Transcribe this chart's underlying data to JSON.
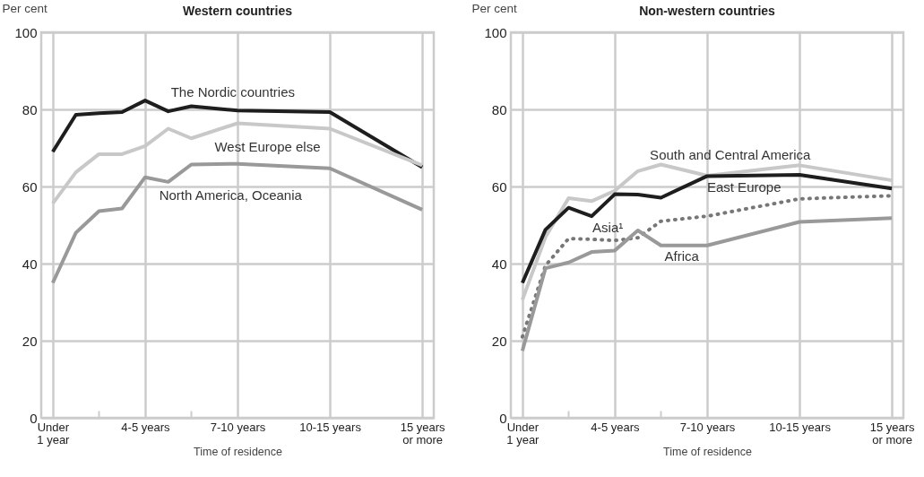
{
  "chart_data": [
    {
      "type": "line",
      "title": "Western countries",
      "ylabel": "Per cent",
      "xlabel": "Time of residence",
      "categories": [
        "Under\n1 year",
        null,
        null,
        null,
        "4-5 years",
        null,
        null,
        null,
        "7-10 years",
        null,
        null,
        null,
        "10-15 years",
        null,
        null,
        null,
        "15 years\nor more"
      ],
      "ylim": [
        0,
        100
      ],
      "yticks": [
        0,
        20,
        40,
        60,
        80,
        100
      ],
      "grid": true,
      "series": [
        {
          "name": "The Nordic countries",
          "color": "#1e1e1e",
          "values": [
            69,
            78.6,
            79,
            79.3,
            82.3,
            79.5,
            80.8,
            null,
            79.7,
            null,
            null,
            null,
            79.3,
            null,
            null,
            null,
            65
          ]
        },
        {
          "name": "West Europe else",
          "color": "#c8c8c8",
          "values": [
            55.6,
            63.7,
            68.4,
            68.4,
            70.5,
            75,
            72.5,
            null,
            76.4,
            null,
            null,
            null,
            75,
            null,
            null,
            null,
            65.5
          ]
        },
        {
          "name": "North America, Oceania",
          "color": "#999999",
          "values": [
            35,
            48,
            53.6,
            54.3,
            62.4,
            61.2,
            65.7,
            null,
            65.9,
            null,
            null,
            null,
            64.7,
            null,
            null,
            null,
            54
          ]
        }
      ]
    },
    {
      "type": "line",
      "title": "Non-western countries",
      "ylabel": "Per cent",
      "xlabel": "Time of residence",
      "categories": [
        "Under\n1 year",
        null,
        null,
        null,
        "4-5 years",
        null,
        null,
        null,
        "7-10 years",
        null,
        null,
        null,
        "10-15 years",
        null,
        null,
        null,
        "15 years\nor more"
      ],
      "ylim": [
        0,
        100
      ],
      "yticks": [
        0,
        20,
        40,
        60,
        80,
        100
      ],
      "grid": true,
      "series": [
        {
          "name": "South and Central America",
          "color": "#c8c8c8",
          "values": [
            30.6,
            46.9,
            57,
            56.2,
            58.9,
            64,
            65.7,
            null,
            62.8,
            null,
            null,
            null,
            65.5,
            null,
            null,
            null,
            61.6
          ]
        },
        {
          "name": "East Europe",
          "color": "#1e1e1e",
          "values": [
            35,
            48.8,
            54.5,
            52.3,
            58,
            57.9,
            57.1,
            null,
            62.7,
            null,
            null,
            null,
            63,
            null,
            null,
            null,
            59.5
          ]
        },
        {
          "name": "Asia¹",
          "color": "#777777",
          "line_style": "dotted",
          "values": [
            21,
            39.5,
            46.5,
            46.3,
            46,
            46.7,
            51,
            null,
            52.3,
            null,
            null,
            null,
            56.8,
            null,
            null,
            null,
            57.6
          ]
        },
        {
          "name": "Africa",
          "color": "#999999",
          "values": [
            17.4,
            38.8,
            40.3,
            43,
            43.4,
            48.6,
            44.7,
            null,
            44.7,
            null,
            null,
            null,
            50.8,
            null,
            null,
            null,
            51.8
          ]
        }
      ]
    }
  ]
}
